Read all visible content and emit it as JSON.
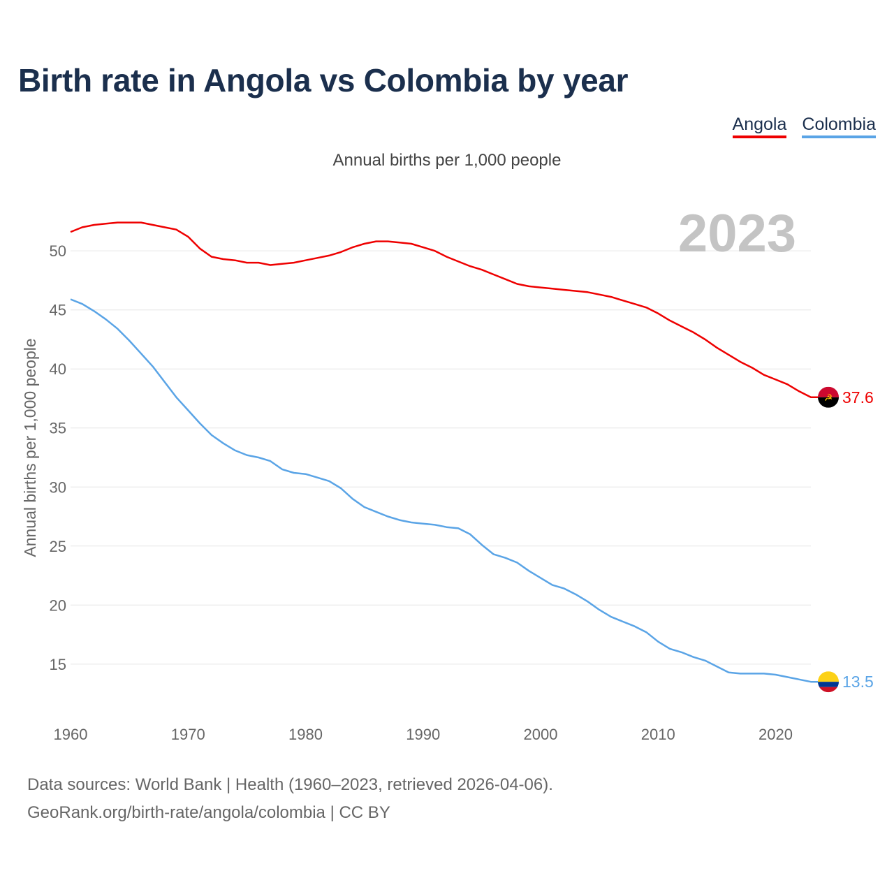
{
  "title": "Birth rate in Angola vs Colombia by year",
  "legend": {
    "angola": "Angola",
    "colombia": "Colombia"
  },
  "subtitle": "Annual births per 1,000 people",
  "footer": {
    "line1": "Data sources: World Bank | Health (1960–2023, retrieved 2026-04-06).",
    "line2": "GeoRank.org/birth-rate/angola/colombia | CC BY"
  },
  "colors": {
    "angola": "#ee0000",
    "colombia": "#5aa4e6",
    "title": "#1b2f4d",
    "grid": "#e6e6e6",
    "watermark": "#c4c4c4"
  },
  "chart_data": {
    "type": "line",
    "title": "Birth rate in Angola vs Colombia by year",
    "xlabel": "",
    "ylabel": "Annual births per 1,000 people",
    "year_label": "2023",
    "xlim": [
      1960,
      2023
    ],
    "ylim": [
      11.5,
      53.5
    ],
    "x_ticks": [
      1960,
      1970,
      1980,
      1990,
      2000,
      2010,
      2020
    ],
    "y_ticks": [
      15,
      20,
      25,
      30,
      35,
      40,
      45,
      50
    ],
    "grid": true,
    "x": [
      1960,
      1961,
      1962,
      1963,
      1964,
      1965,
      1966,
      1967,
      1968,
      1969,
      1970,
      1971,
      1972,
      1973,
      1974,
      1975,
      1976,
      1977,
      1978,
      1979,
      1980,
      1981,
      1982,
      1983,
      1984,
      1985,
      1986,
      1987,
      1988,
      1989,
      1990,
      1991,
      1992,
      1993,
      1994,
      1995,
      1996,
      1997,
      1998,
      1999,
      2000,
      2001,
      2002,
      2003,
      2004,
      2005,
      2006,
      2007,
      2008,
      2009,
      2010,
      2011,
      2012,
      2013,
      2014,
      2015,
      2016,
      2017,
      2018,
      2019,
      2020,
      2021,
      2022,
      2023
    ],
    "series": [
      {
        "name": "Angola",
        "color": "#ee0000",
        "flag": "angola-flag",
        "end_label": "37.6",
        "values": [
          51.6,
          52.0,
          52.2,
          52.3,
          52.4,
          52.4,
          52.4,
          52.2,
          52.0,
          51.8,
          51.2,
          50.2,
          49.5,
          49.3,
          49.2,
          49.0,
          49.0,
          48.8,
          48.9,
          49.0,
          49.2,
          49.4,
          49.6,
          49.9,
          50.3,
          50.6,
          50.8,
          50.8,
          50.7,
          50.6,
          50.3,
          50.0,
          49.5,
          49.1,
          48.7,
          48.4,
          48.0,
          47.6,
          47.2,
          47.0,
          46.9,
          46.8,
          46.7,
          46.6,
          46.5,
          46.3,
          46.1,
          45.8,
          45.5,
          45.2,
          44.7,
          44.1,
          43.6,
          43.1,
          42.5,
          41.8,
          41.2,
          40.6,
          40.1,
          39.5,
          39.1,
          38.7,
          38.1,
          37.6
        ]
      },
      {
        "name": "Colombia",
        "color": "#5aa4e6",
        "flag": "colombia-flag",
        "end_label": "13.5",
        "values": [
          45.9,
          45.5,
          44.9,
          44.2,
          43.4,
          42.4,
          41.3,
          40.2,
          38.9,
          37.6,
          36.5,
          35.4,
          34.4,
          33.7,
          33.1,
          32.7,
          32.5,
          32.2,
          31.5,
          31.2,
          31.1,
          30.8,
          30.5,
          29.9,
          29.0,
          28.3,
          27.9,
          27.5,
          27.2,
          27.0,
          26.9,
          26.8,
          26.6,
          26.5,
          26.0,
          25.1,
          24.3,
          24.0,
          23.6,
          22.9,
          22.3,
          21.7,
          21.4,
          20.9,
          20.3,
          19.6,
          19.0,
          18.6,
          18.2,
          17.7,
          16.9,
          16.3,
          16.0,
          15.6,
          15.3,
          14.8,
          14.3,
          14.2,
          14.2,
          14.2,
          14.1,
          13.9,
          13.7,
          13.5
        ]
      }
    ]
  }
}
